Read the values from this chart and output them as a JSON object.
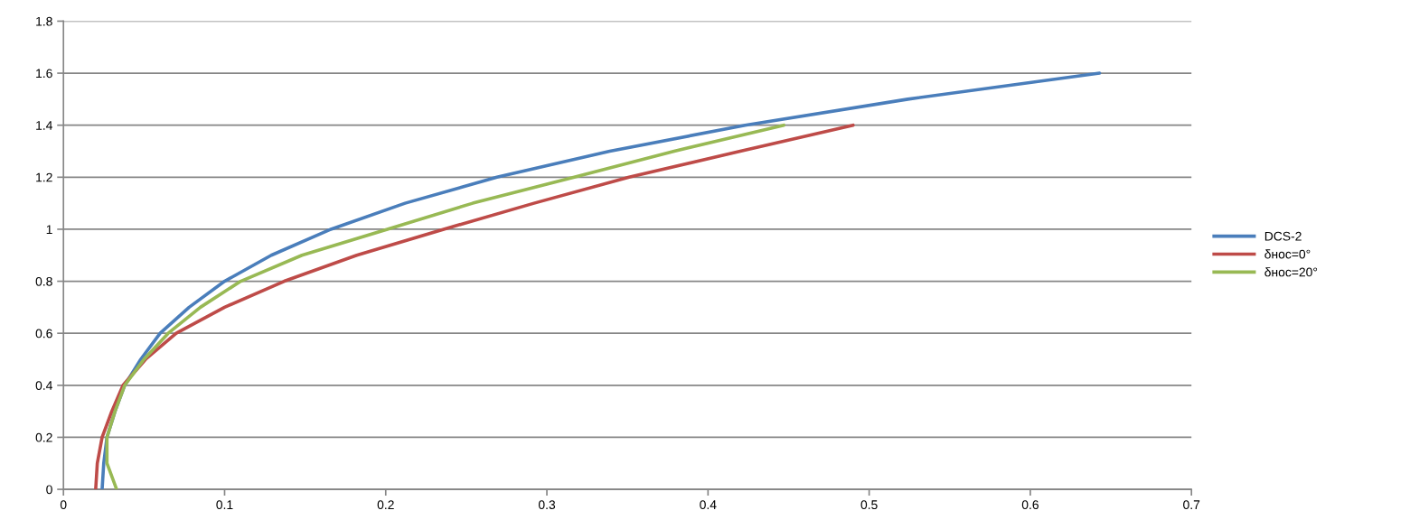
{
  "chart_data": {
    "type": "line",
    "series": [
      {
        "name": "DCS-2",
        "color": "#4a7ebb",
        "x": [
          0.024,
          0.025,
          0.027,
          0.032,
          0.038,
          0.048,
          0.06,
          0.078,
          0.1,
          0.129,
          0.166,
          0.212,
          0.269,
          0.339,
          0.423,
          0.524,
          0.643
        ],
        "values": [
          0,
          0.1,
          0.2,
          0.3,
          0.4,
          0.5,
          0.6,
          0.7,
          0.8,
          0.9,
          1,
          1.1,
          1.2,
          1.3,
          1.4,
          1.5,
          1.6
        ]
      },
      {
        "name": "δнос=0°",
        "color": "#be4b48",
        "x": [
          0.02,
          0.021,
          0.024,
          0.03,
          0.037,
          0.051,
          0.07,
          0.1,
          0.137,
          0.182,
          0.236,
          0.292,
          0.351,
          0.42,
          0.49
        ],
        "values": [
          0,
          0.1,
          0.2,
          0.3,
          0.4,
          0.5,
          0.6,
          0.7,
          0.8,
          0.9,
          1,
          1.1,
          1.2,
          1.3,
          1.4
        ]
      },
      {
        "name": "δнос=20°",
        "color": "#98b954",
        "x": [
          0.033,
          0.027,
          0.027,
          0.032,
          0.038,
          0.05,
          0.065,
          0.085,
          0.11,
          0.148,
          0.201,
          0.254,
          0.317,
          0.379,
          0.447
        ],
        "values": [
          0,
          0.1,
          0.2,
          0.3,
          0.4,
          0.5,
          0.6,
          0.7,
          0.8,
          0.9,
          1,
          1.1,
          1.2,
          1.3,
          1.4
        ]
      }
    ],
    "xlim": [
      0,
      0.7
    ],
    "xticks": [
      0,
      0.1,
      0.2,
      0.3,
      0.4,
      0.5,
      0.6,
      0.7
    ],
    "ylim": [
      0,
      1.8
    ],
    "yticks": [
      0,
      0.2,
      0.4,
      0.6,
      0.8,
      1,
      1.2,
      1.4,
      1.6,
      1.8
    ],
    "grid": "y",
    "legend": "right"
  }
}
